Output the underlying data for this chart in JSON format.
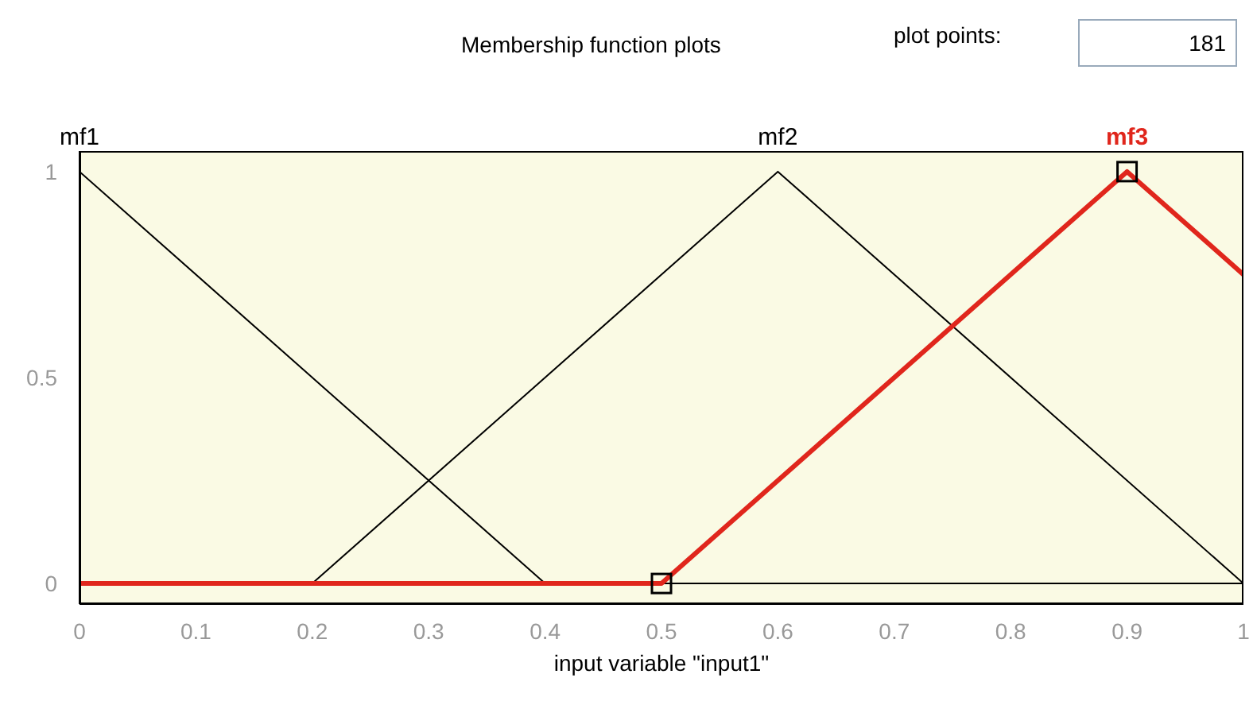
{
  "chart_data": {
    "type": "line",
    "title": "Membership function plots",
    "xlabel": "input variable \"input1\"",
    "xlim": [
      0,
      1
    ],
    "xticks": [
      0,
      0.1,
      0.2,
      0.3,
      0.4,
      0.5,
      0.6,
      0.7,
      0.8,
      0.9,
      1
    ],
    "ylim": [
      -0.05,
      1.05
    ],
    "yticks": [
      0,
      0.5,
      1
    ],
    "marker": "none",
    "annotations": [
      "plot points:",
      "181"
    ],
    "series": [
      {
        "name": "mf1",
        "color": "#000000",
        "x": [
          0,
          0.4,
          1
        ],
        "values": [
          1,
          0,
          0
        ]
      },
      {
        "name": "mf2",
        "color": "#000000",
        "x": [
          0,
          0.2,
          0.6,
          1
        ],
        "values": [
          0,
          0,
          1,
          0
        ]
      },
      {
        "name": "mf3",
        "color": "#e0261c",
        "x": [
          0,
          0.5,
          0.9,
          1
        ],
        "values": [
          0,
          0,
          1,
          0.75
        ]
      },
      {
        "type": "scatter",
        "marker": "square",
        "color": "#000000",
        "x": [
          0.5,
          0.9
        ],
        "values": [
          0,
          1
        ]
      }
    ]
  }
}
